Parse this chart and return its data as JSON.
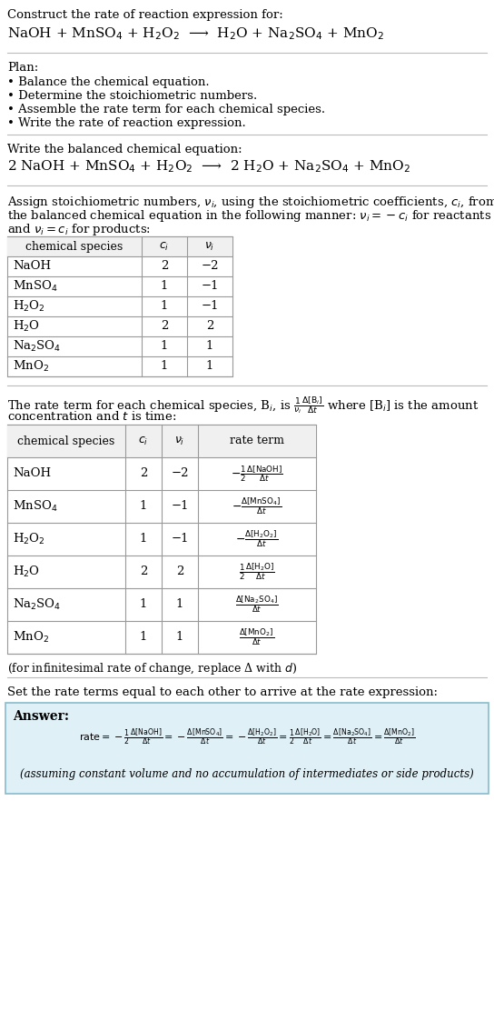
{
  "bg_color": "#ffffff",
  "title_text": "Construct the rate of reaction expression for:",
  "reaction_unbalanced": "NaOH + MnSO$_4$ + H$_2$O$_2$  ⟶  H$_2$O + Na$_2$SO$_4$ + MnO$_2$",
  "plan_header": "Plan:",
  "plan_items": [
    "• Balance the chemical equation.",
    "• Determine the stoichiometric numbers.",
    "• Assemble the rate term for each chemical species.",
    "• Write the rate of reaction expression."
  ],
  "balanced_header": "Write the balanced chemical equation:",
  "reaction_balanced": "2 NaOH + MnSO$_4$ + H$_2$O$_2$  ⟶  2 H$_2$O + Na$_2$SO$_4$ + MnO$_2$",
  "table1_headers": [
    "chemical species",
    "$c_i$",
    "$\\nu_i$"
  ],
  "table1_data": [
    [
      "NaOH",
      "2",
      "−2"
    ],
    [
      "MnSO$_4$",
      "1",
      "−1"
    ],
    [
      "H$_2$O$_2$",
      "1",
      "−1"
    ],
    [
      "H$_2$O",
      "2",
      "2"
    ],
    [
      "Na$_2$SO$_4$",
      "1",
      "1"
    ],
    [
      "MnO$_2$",
      "1",
      "1"
    ]
  ],
  "table2_headers": [
    "chemical species",
    "$c_i$",
    "$\\nu_i$",
    "rate term"
  ],
  "table2_data": [
    [
      "NaOH",
      "2",
      "−2",
      "$-\\frac{1}{2}\\frac{\\Delta[\\mathrm{NaOH}]}{\\Delta t}$"
    ],
    [
      "MnSO$_4$",
      "1",
      "−1",
      "$-\\frac{\\Delta[\\mathrm{MnSO_4}]}{\\Delta t}$"
    ],
    [
      "H$_2$O$_2$",
      "1",
      "−1",
      "$-\\frac{\\Delta[\\mathrm{H_2O_2}]}{\\Delta t}$"
    ],
    [
      "H$_2$O",
      "2",
      "2",
      "$\\frac{1}{2}\\frac{\\Delta[\\mathrm{H_2O}]}{\\Delta t}$"
    ],
    [
      "Na$_2$SO$_4$",
      "1",
      "1",
      "$\\frac{\\Delta[\\mathrm{Na_2SO_4}]}{\\Delta t}$"
    ],
    [
      "MnO$_2$",
      "1",
      "1",
      "$\\frac{\\Delta[\\mathrm{MnO_2}]}{\\Delta t}$"
    ]
  ],
  "infinitesimal_note": "(for infinitesimal rate of change, replace Δ with $d$)",
  "set_rate_text": "Set the rate terms equal to each other to arrive at the rate expression:",
  "answer_label": "Answer:",
  "answer_box_color": "#dff0f7",
  "answer_box_border": "#88bbcc",
  "rate_expression": "$\\mathrm{rate} = -\\frac{1}{2}\\frac{\\Delta[\\mathrm{NaOH}]}{\\Delta t} = -\\frac{\\Delta[\\mathrm{MnSO_4}]}{\\Delta t} = -\\frac{\\Delta[\\mathrm{H_2O_2}]}{\\Delta t} = \\frac{1}{2}\\frac{\\Delta[\\mathrm{H_2O}]}{\\Delta t} = \\frac{\\Delta[\\mathrm{Na_2SO_4}]}{\\Delta t} = \\frac{\\Delta[\\mathrm{MnO_2}]}{\\Delta t}$",
  "assuming_note": "(assuming constant volume and no accumulation of intermediates or side products)"
}
